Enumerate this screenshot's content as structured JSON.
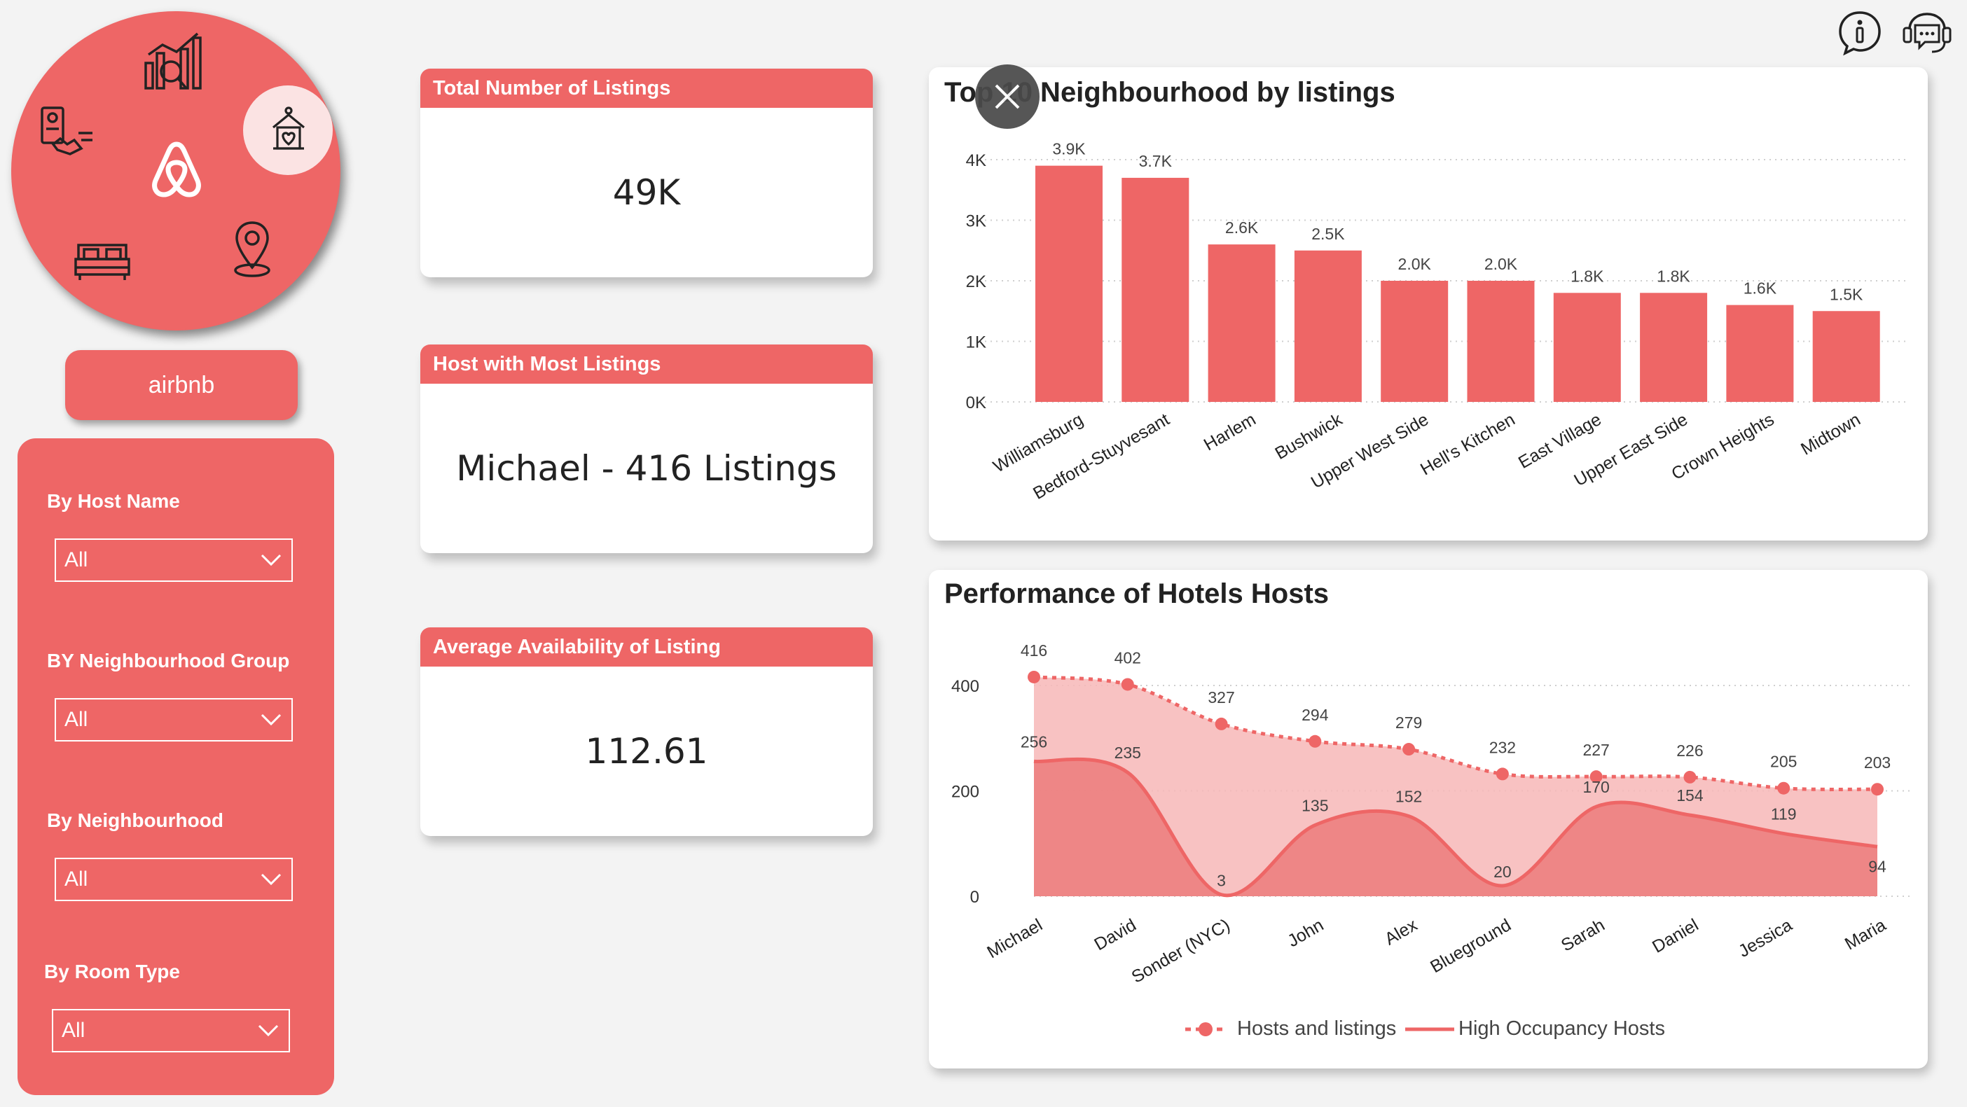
{
  "brand": {
    "name": "airbnb"
  },
  "nav_icons": [
    "analytics-icon",
    "checklist-icon",
    "airbnb-logo-icon",
    "home-heart-icon",
    "bed-icon",
    "location-pin-icon"
  ],
  "top_icons": [
    "info-icon",
    "chat-support-icon"
  ],
  "filters": [
    {
      "label": "By Host Name",
      "value": "All"
    },
    {
      "label": "BY Neighbourhood Group",
      "value": "All"
    },
    {
      "label": "By Neighbourhood",
      "value": "All"
    },
    {
      "label": "By Room Type",
      "value": "All"
    }
  ],
  "kpis": [
    {
      "title": "Total Number of Listings",
      "value": "49K"
    },
    {
      "title": "Host with Most Listings",
      "value": "Michael - 416 Listings"
    },
    {
      "title": "Average Availability of Listing",
      "value": "112.61"
    }
  ],
  "colors": {
    "accent": "#ee6666",
    "accent_light": "#f7b7b7",
    "accent_mid": "#ec7f7f"
  },
  "chart_data": [
    {
      "type": "bar",
      "title": "Top 10 Neighbourhood by listings",
      "categories": [
        "Williamsburg",
        "Bedford-Stuyvesant",
        "Harlem",
        "Bushwick",
        "Upper West Side",
        "Hell's Kitchen",
        "East Village",
        "Upper East Side",
        "Crown Heights",
        "Midtown"
      ],
      "values": [
        3900,
        3700,
        2600,
        2500,
        2000,
        2000,
        1800,
        1800,
        1600,
        1500
      ],
      "data_labels": [
        "3.9K",
        "3.7K",
        "2.6K",
        "2.5K",
        "2.0K",
        "2.0K",
        "1.8K",
        "1.8K",
        "1.6K",
        "1.5K"
      ],
      "yticks": [
        "0K",
        "1K",
        "2K",
        "3K",
        "4K"
      ],
      "ylim": [
        0,
        4000
      ],
      "grid": true
    },
    {
      "type": "area",
      "title": "Performance of Hotels Hosts",
      "categories": [
        "Michael",
        "David",
        "Sonder (NYC)",
        "John",
        "Alex",
        "Blueground",
        "Sarah",
        "Daniel",
        "Jessica",
        "Maria"
      ],
      "series": [
        {
          "name": "Hosts and listings",
          "values": [
            416,
            402,
            327,
            294,
            279,
            232,
            227,
            226,
            205,
            203
          ]
        },
        {
          "name": "High Occupancy Hosts",
          "values": [
            256,
            235,
            3,
            135,
            152,
            20,
            170,
            154,
            119,
            94
          ]
        }
      ],
      "yticks": [
        "0",
        "200",
        "400"
      ],
      "ylim": [
        0,
        480
      ],
      "legend": "bottom-center",
      "grid": true
    }
  ]
}
